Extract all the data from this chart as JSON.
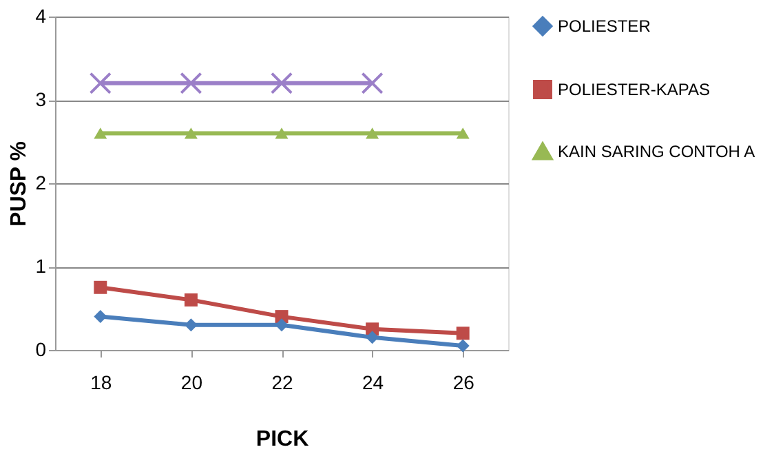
{
  "chart_data": {
    "type": "line",
    "xlabel": "PICK",
    "ylabel": "PUSP %",
    "categories": [
      "18",
      "20",
      "22",
      "24",
      "26"
    ],
    "series": [
      {
        "name": "POLIESTER",
        "color": "#4a7ebb",
        "marker": "diamond",
        "values": [
          0.4,
          0.3,
          0.3,
          0.15,
          0.05
        ]
      },
      {
        "name": "POLIESTER-KAPAS",
        "color": "#be4b48",
        "marker": "square",
        "values": [
          0.75,
          0.6,
          0.4,
          0.25,
          0.2
        ]
      },
      {
        "name": "KAIN SARING CONTOH A",
        "color": "#98b954",
        "marker": "triangle",
        "values": [
          2.6,
          2.6,
          2.6,
          2.6,
          2.6
        ]
      },
      {
        "color": "#9b7fc8",
        "marker": "cross",
        "values": [
          3.2,
          3.2,
          3.2,
          3.2,
          null
        ]
      }
    ],
    "ylim": [
      0,
      4
    ],
    "yticks": [
      0,
      1,
      2,
      3,
      4
    ],
    "grid": "y",
    "legend": "right",
    "line_style": "solid"
  }
}
